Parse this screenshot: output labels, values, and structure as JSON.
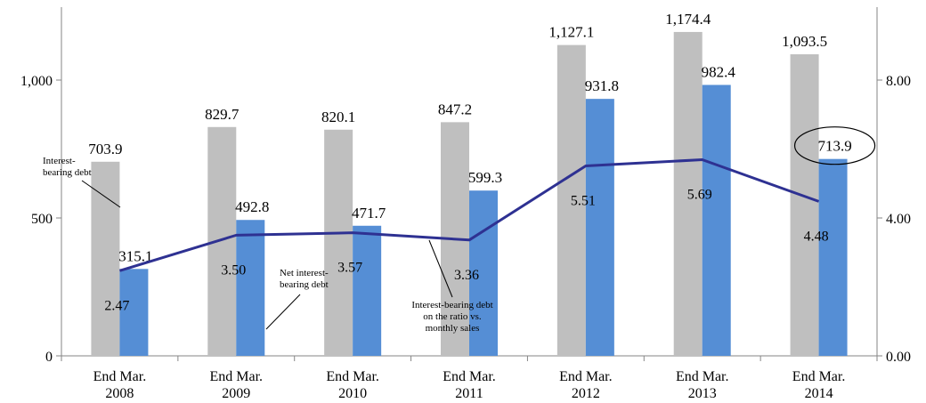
{
  "chart_data": {
    "type": "bar",
    "categories": [
      [
        "End Mar.",
        "2008"
      ],
      [
        "End Mar.",
        "2009"
      ],
      [
        "End Mar.",
        "2010"
      ],
      [
        "End Mar.",
        "2011"
      ],
      [
        "End Mar.",
        "2012"
      ],
      [
        "End Mar.",
        "2013"
      ],
      [
        "End Mar.",
        "2014"
      ]
    ],
    "series": [
      {
        "name": "Interest-bearing debt",
        "type": "bar",
        "axis": "left",
        "color": "#bfbfbf",
        "values": [
          703.9,
          829.7,
          820.1,
          847.2,
          1127.1,
          1174.4,
          1093.5
        ],
        "labels": [
          "703.9",
          "829.7",
          "820.1",
          "847.2",
          "1,127.1",
          "1,174.4",
          "1,093.5"
        ]
      },
      {
        "name": "Net interest-bearing debt",
        "type": "bar",
        "axis": "left",
        "color": "#558ed5",
        "values": [
          315.1,
          492.8,
          471.7,
          599.3,
          931.8,
          982.4,
          713.9
        ],
        "labels": [
          "315.1",
          "492.8",
          "471.7",
          "599.3",
          "931.8",
          "982.4",
          "713.9"
        ]
      },
      {
        "name": "Interest-bearing debt on the ratio vs. monthly sales",
        "type": "line",
        "axis": "right",
        "color": "#2e3192",
        "values": [
          2.47,
          3.5,
          3.57,
          3.36,
          5.51,
          5.69,
          4.48
        ],
        "labels": [
          "2.47",
          "3.50",
          "3.57",
          "3.36",
          "5.51",
          "5.69",
          "4.48"
        ]
      }
    ],
    "y_left": {
      "ylim": [
        0,
        1000
      ],
      "ticks": [
        0,
        500,
        1000
      ],
      "tick_labels": [
        "0",
        "500",
        "1,000"
      ]
    },
    "y_right": {
      "ylim": [
        0,
        8
      ],
      "ticks": [
        0,
        4,
        8
      ],
      "tick_labels": [
        "0.00",
        "4.00",
        "8.00"
      ]
    },
    "annotations": [
      {
        "text": [
          "Interest-",
          "bearing debt"
        ],
        "points_to": "Interest-bearing debt"
      },
      {
        "text": [
          "Net interest-",
          "bearing debt"
        ],
        "points_to": "Net interest-bearing debt"
      },
      {
        "text": [
          "Interest-bearing debt",
          "on the ratio vs.",
          "monthly sales"
        ],
        "points_to": "Interest-bearing debt on the ratio vs. monthly sales"
      }
    ],
    "highlight": {
      "series": "Net interest-bearing debt",
      "category_index": 6,
      "shape": "ellipse"
    },
    "title": "",
    "xlabel": "",
    "ylabel": "",
    "grid": false
  }
}
